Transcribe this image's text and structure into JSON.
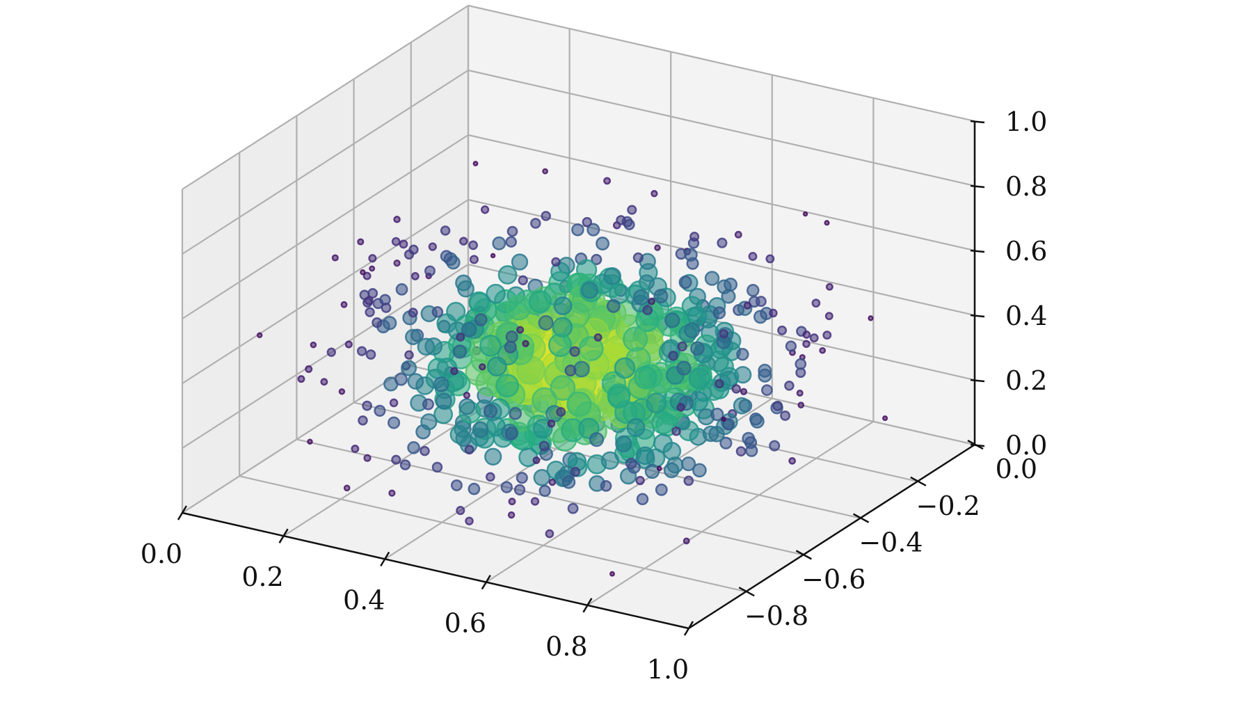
{
  "chart_data": {
    "type": "scatter3d",
    "title": "",
    "xlabel": "",
    "ylabel": "",
    "zlabel": "",
    "xlim": [
      0,
      1
    ],
    "ylim": [
      -1,
      0
    ],
    "zlim": [
      0,
      1
    ],
    "x_ticks": [
      "0.0",
      "0.2",
      "0.4",
      "0.6",
      "0.8",
      "1.0"
    ],
    "y_ticks": [
      "0.0",
      "−0.2",
      "−0.4",
      "−0.6",
      "−0.8"
    ],
    "z_ticks": [
      "0.0",
      "0.2",
      "0.4",
      "0.6",
      "0.8",
      "1.0"
    ],
    "grid": true,
    "colormap": "viridis",
    "marker_size_encodes": "color value",
    "point_count": 700,
    "distribution": "density peaked near x=0.5, y=-0.5, z=0.35 and falling off with distance",
    "colors": {
      "pane": "#f2f2f2",
      "grid": "#b0b0b0",
      "axis": "#111111"
    }
  }
}
